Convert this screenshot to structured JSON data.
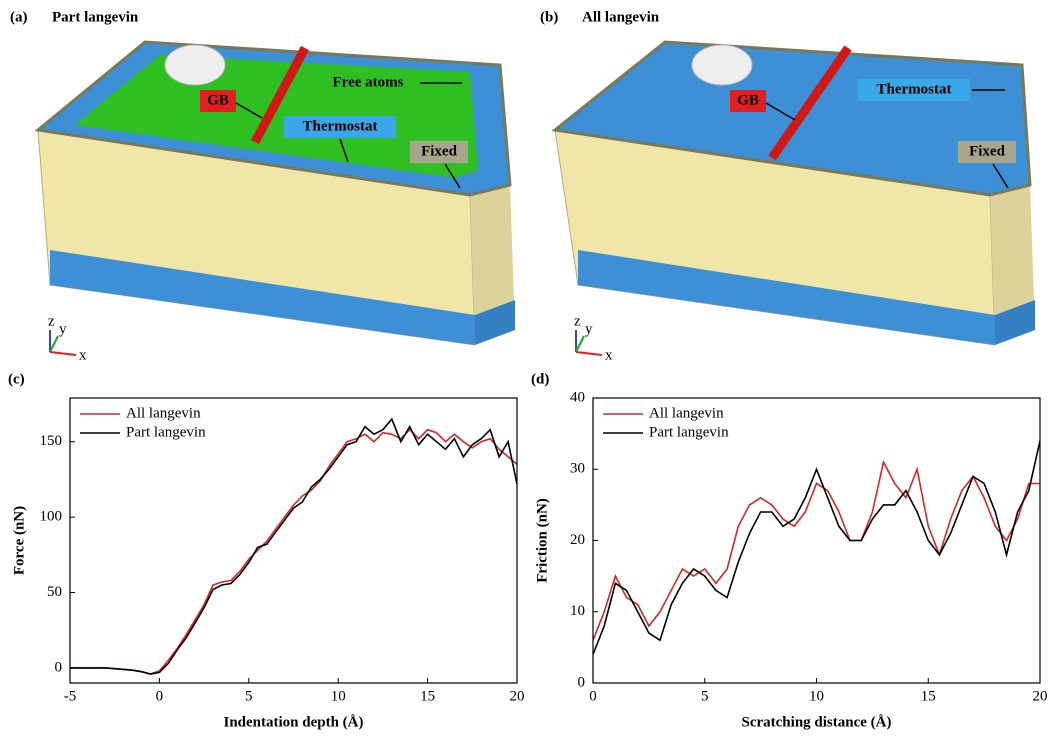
{
  "renders": [
    {
      "panel_label": "(a)",
      "title": "Part langevin",
      "labels": [
        "GB",
        "Free atoms",
        "Thermostat",
        "Fixed"
      ],
      "axes": [
        "z",
        "y",
        "x"
      ]
    },
    {
      "panel_label": "(b)",
      "title": "All langevin",
      "labels": [
        "GB",
        "Thermostat",
        "Fixed"
      ],
      "axes": [
        "z",
        "y",
        "x"
      ]
    }
  ],
  "chart_data": [
    {
      "type": "line",
      "panel_label": "(c)",
      "x_label": "Indentation depth (Å)",
      "y_label": "Force (nN)",
      "xlim": [
        -5,
        20
      ],
      "xticks": [
        -5,
        0,
        5,
        10,
        15,
        20
      ],
      "ylim": [
        -10,
        179
      ],
      "yticks": [
        0,
        50,
        100,
        150
      ],
      "legend": "upper left",
      "grid": false,
      "x": [
        -5,
        -4.5,
        -4,
        -3.5,
        -3,
        -2.5,
        -2,
        -1.5,
        -1,
        -0.5,
        0,
        0.5,
        1,
        1.5,
        2,
        2.5,
        3,
        3.5,
        4,
        4.5,
        5,
        5.5,
        6,
        6.5,
        7,
        7.5,
        8,
        8.5,
        9,
        9.5,
        10,
        10.5,
        11,
        11.5,
        12,
        12.5,
        13,
        13.5,
        14,
        14.5,
        15,
        15.5,
        16,
        16.5,
        17,
        17.5,
        18,
        18.5,
        19,
        19.5,
        20
      ],
      "series": [
        {
          "name": "All langevin",
          "color": "#d62728",
          "values": [
            0,
            0,
            0,
            0,
            0,
            -0.5,
            -1,
            -1.5,
            -2.5,
            -4,
            -2,
            5,
            13,
            22,
            32,
            42,
            55,
            57,
            58,
            64,
            72,
            78,
            84,
            92,
            100,
            108,
            114,
            118,
            124,
            134,
            142,
            150,
            152,
            155,
            150,
            156,
            155,
            152,
            158,
            152,
            158,
            156,
            150,
            155,
            150,
            146,
            150,
            152,
            145,
            140,
            135
          ]
        },
        {
          "name": "Part langevin",
          "color": "#000000",
          "values": [
            0,
            0,
            0,
            0,
            0,
            -0.5,
            -1,
            -1.5,
            -2.5,
            -4,
            -3,
            3,
            12,
            20,
            30,
            40,
            52,
            55,
            56,
            62,
            70,
            80,
            82,
            90,
            98,
            106,
            110,
            120,
            125,
            132,
            140,
            148,
            150,
            160,
            155,
            158,
            165,
            150,
            160,
            148,
            155,
            150,
            145,
            152,
            140,
            148,
            152,
            158,
            140,
            150,
            122
          ]
        }
      ]
    },
    {
      "type": "line",
      "panel_label": "(d)",
      "x_label": "Scratching distance (Å)",
      "y_label": "Friction (nN)",
      "xlim": [
        0,
        20
      ],
      "xticks": [
        0,
        5,
        10,
        15,
        20
      ],
      "ylim": [
        0,
        40
      ],
      "yticks": [
        0,
        10,
        20,
        30,
        40
      ],
      "legend": "upper left",
      "grid": false,
      "x": [
        0,
        0.5,
        1,
        1.5,
        2,
        2.5,
        3,
        3.5,
        4,
        4.5,
        5,
        5.5,
        6,
        6.5,
        7,
        7.5,
        8,
        8.5,
        9,
        9.5,
        10,
        10.5,
        11,
        11.5,
        12,
        12.5,
        13,
        13.5,
        14,
        14.5,
        15,
        15.5,
        16,
        16.5,
        17,
        17.5,
        18,
        18.5,
        19,
        19.5,
        20
      ],
      "series": [
        {
          "name": "All langevin",
          "color": "#d62728",
          "values": [
            6,
            10,
            15,
            12,
            11,
            8,
            10,
            13,
            16,
            15,
            16,
            14,
            16,
            22,
            25,
            26,
            25,
            23,
            22,
            24,
            28,
            27,
            24,
            20,
            20,
            24,
            31,
            28,
            26,
            30,
            22,
            18,
            23,
            27,
            29,
            26,
            22,
            20,
            23,
            28,
            28
          ]
        },
        {
          "name": "Part langevin",
          "color": "#000000",
          "values": [
            4,
            8,
            14,
            13,
            10,
            7,
            6,
            11,
            14,
            16,
            15,
            13,
            12,
            17,
            21,
            24,
            24,
            22,
            23,
            26,
            30,
            26,
            22,
            20,
            20,
            23,
            25,
            25,
            27,
            24,
            20,
            18,
            21,
            25,
            29,
            28,
            24,
            18,
            24,
            27,
            34
          ]
        }
      ]
    }
  ]
}
